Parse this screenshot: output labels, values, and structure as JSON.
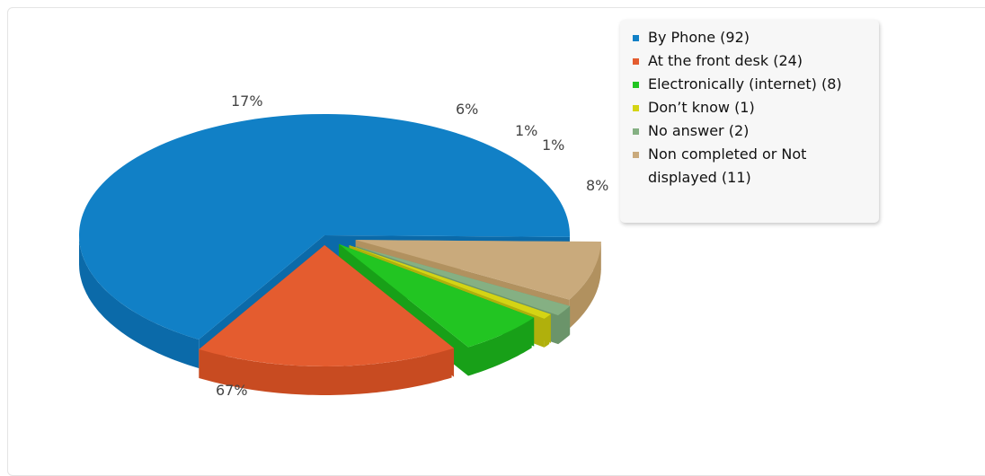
{
  "chart_data": {
    "type": "pie",
    "title": "",
    "series": [
      {
        "label": "By Phone (92)",
        "value": 92,
        "percent_label": "67%",
        "color": "#1180c6",
        "side_color": "#0b6aa9"
      },
      {
        "label": "At the front desk (24)",
        "value": 24,
        "percent_label": "17%",
        "color": "#e45c2f",
        "side_color": "#c84b21"
      },
      {
        "label": "Electronically (internet) (8)",
        "value": 8,
        "percent_label": "6%",
        "color": "#22c522",
        "side_color": "#18a018"
      },
      {
        "label": "Don’t know (1)",
        "value": 1,
        "percent_label": "1%",
        "color": "#d4d414",
        "side_color": "#b0b00c"
      },
      {
        "label": "No answer (2)",
        "value": 2,
        "percent_label": "1%",
        "color": "#85b083",
        "side_color": "#6b946a"
      },
      {
        "label": "Non completed or Not displayed (11)",
        "value": 11,
        "percent_label": "8%",
        "color": "#c9aa7c",
        "side_color": "#b1915f"
      }
    ],
    "legend_position": "top-right"
  }
}
